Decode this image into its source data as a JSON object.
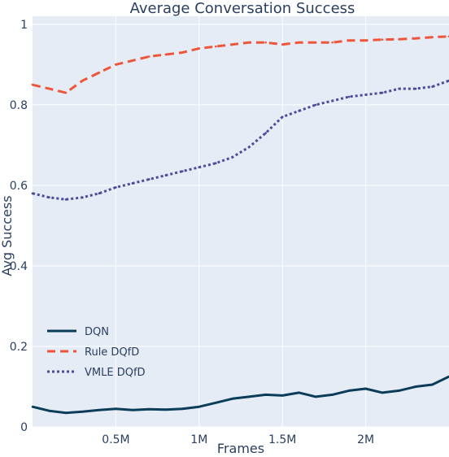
{
  "chart_data": {
    "type": "line",
    "title": "Average Conversation Success",
    "xlabel": "Frames",
    "ylabel": "Avg Success",
    "xlim": [
      0,
      2500000
    ],
    "ylim": [
      0,
      1.02
    ],
    "grid": true,
    "legend_position": "bottom-left",
    "x_ticks": [
      {
        "value": 500000,
        "label": "0.5M"
      },
      {
        "value": 1000000,
        "label": "1M"
      },
      {
        "value": 1500000,
        "label": "1.5M"
      },
      {
        "value": 2000000,
        "label": "2M"
      }
    ],
    "y_ticks": [
      {
        "value": 0,
        "label": "0"
      },
      {
        "value": 0.2,
        "label": "0.2"
      },
      {
        "value": 0.4,
        "label": "0.4"
      },
      {
        "value": 0.6,
        "label": "0.6"
      },
      {
        "value": 0.8,
        "label": "0.8"
      },
      {
        "value": 1,
        "label": "1"
      }
    ],
    "x": [
      0,
      100000,
      200000,
      300000,
      400000,
      500000,
      600000,
      700000,
      800000,
      900000,
      1000000,
      1100000,
      1200000,
      1300000,
      1400000,
      1500000,
      1600000,
      1700000,
      1800000,
      1900000,
      2000000,
      2100000,
      2200000,
      2300000,
      2400000,
      2500000
    ],
    "series": [
      {
        "name": "DQN",
        "color": "#0b3d59",
        "dash": "solid",
        "values": [
          0.05,
          0.04,
          0.035,
          0.038,
          0.042,
          0.045,
          0.042,
          0.044,
          0.043,
          0.045,
          0.05,
          0.06,
          0.07,
          0.075,
          0.08,
          0.078,
          0.085,
          0.075,
          0.08,
          0.09,
          0.095,
          0.085,
          0.09,
          0.1,
          0.105,
          0.125
        ]
      },
      {
        "name": "Rule DQfD",
        "color": "#ef553b",
        "dash": "dash",
        "values": [
          0.85,
          0.84,
          0.83,
          0.86,
          0.88,
          0.9,
          0.91,
          0.92,
          0.925,
          0.93,
          0.94,
          0.945,
          0.95,
          0.955,
          0.955,
          0.95,
          0.955,
          0.955,
          0.955,
          0.96,
          0.96,
          0.962,
          0.963,
          0.965,
          0.968,
          0.97
        ]
      },
      {
        "name": "VMLE DQfD",
        "color": "#4c4c9a",
        "dash": "dot",
        "values": [
          0.58,
          0.57,
          0.565,
          0.57,
          0.58,
          0.595,
          0.605,
          0.615,
          0.625,
          0.635,
          0.645,
          0.655,
          0.67,
          0.695,
          0.73,
          0.77,
          0.785,
          0.8,
          0.81,
          0.82,
          0.825,
          0.83,
          0.84,
          0.84,
          0.845,
          0.86
        ]
      }
    ]
  }
}
